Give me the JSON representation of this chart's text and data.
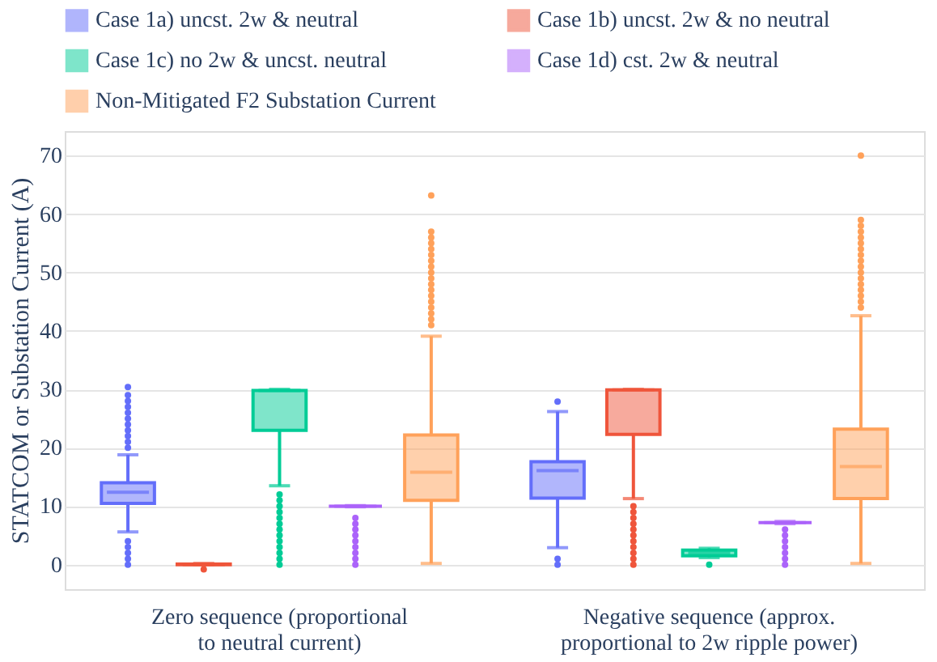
{
  "chart_data": {
    "type": "box",
    "categories": [
      "Zero sequence (proportional\nto neutral current)",
      "Negative sequence (approx.\nproportional to 2w ripple power)"
    ],
    "ylabel": "STATCOM or Substation Current (A)",
    "ylim": [
      -4.2,
      74.2
    ],
    "yticks": [
      0,
      10,
      20,
      30,
      40,
      50,
      60,
      70
    ],
    "grid": "y",
    "legend": "top",
    "series": [
      {
        "name": "Case 1a) uncst. 2w & neutral",
        "color": "#636efa",
        "boxes": [
          {
            "low": 5.6,
            "q1": 10.5,
            "median": 12.4,
            "q3": 14.0,
            "high": 18.8,
            "outliers": [
              0,
              1,
              2,
              3,
              4,
              20,
              21,
              22,
              23,
              24,
              25,
              26,
              27,
              28,
              29,
              30.4
            ]
          },
          {
            "low": 2.9,
            "q1": 11.4,
            "median": 16.1,
            "q3": 17.6,
            "high": 26.2,
            "outliers": [
              0,
              1,
              27.9
            ]
          }
        ]
      },
      {
        "name": "Case 1b) uncst. 2w & no neutral",
        "color": "#ef553b",
        "boxes": [
          {
            "low": 0,
            "q1": 0,
            "median": 0,
            "q3": 0.1,
            "high": 0.2,
            "outliers": [
              -0.8
            ]
          },
          {
            "low": 11.3,
            "q1": 22.3,
            "median": 29.9,
            "q3": 29.9,
            "high": 30.0,
            "outliers": [
              0,
              1,
              2,
              3,
              4,
              5,
              6,
              7,
              8,
              9,
              10
            ]
          }
        ]
      },
      {
        "name": "Case 1c) no 2w & uncst. neutral",
        "color": "#00cc96",
        "boxes": [
          {
            "low": 13.5,
            "q1": 23.0,
            "median": 29.8,
            "q3": 29.8,
            "high": 30.0,
            "outliers": [
              0,
              1,
              2,
              3,
              4,
              5,
              6,
              7,
              8,
              9,
              10,
              11,
              12
            ]
          },
          {
            "low": 1.2,
            "q1": 1.5,
            "median": 2.0,
            "q3": 2.5,
            "high": 2.8,
            "outliers": [
              0
            ]
          }
        ]
      },
      {
        "name": "Case 1d) cst. 2w & neutral",
        "color": "#ab63fa",
        "boxes": [
          {
            "low": 9.9,
            "q1": 10.0,
            "median": 10.0,
            "q3": 10.0,
            "high": 10.1,
            "outliers": [
              0,
              1,
              2,
              3,
              4,
              5,
              6,
              7,
              8
            ]
          },
          {
            "low": 7.0,
            "q1": 7.2,
            "median": 7.2,
            "q3": 7.2,
            "high": 7.4,
            "outliers": [
              0,
              1,
              2,
              3,
              4,
              5,
              6
            ]
          }
        ]
      },
      {
        "name": "Non-Mitigated F2 Substation Current",
        "color": "#ffa15a",
        "boxes": [
          {
            "low": 0.2,
            "q1": 11.0,
            "median": 15.8,
            "q3": 22.2,
            "high": 39.1,
            "outliers": [
              41,
              42,
              43,
              44,
              45,
              46,
              47,
              48,
              49,
              50,
              51,
              52,
              53,
              54,
              55,
              56,
              57,
              63.2
            ]
          },
          {
            "low": 0.2,
            "q1": 11.3,
            "median": 16.8,
            "q3": 23.2,
            "high": 42.6,
            "outliers": [
              44,
              45,
              46,
              47,
              48,
              49,
              50,
              51,
              52,
              53,
              54,
              55,
              56,
              57,
              58,
              59,
              70
            ]
          }
        ]
      }
    ]
  }
}
